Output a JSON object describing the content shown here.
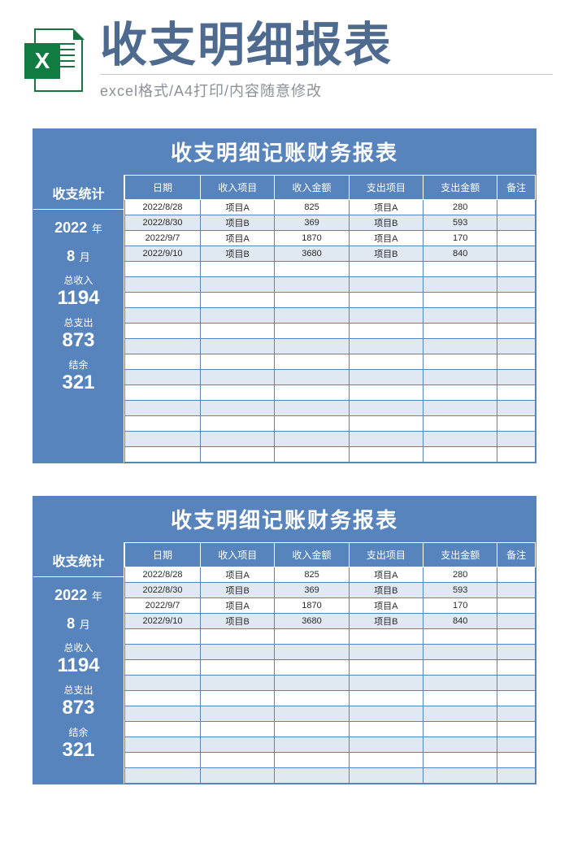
{
  "hero": {
    "title": "收支明细报表",
    "subtitle": "excel格式/A4打印/内容随意修改",
    "icon_letter": "X",
    "icon_bg": "#107c41",
    "icon_border": "#19733f"
  },
  "colors": {
    "brand_blue": "#5784bd",
    "alt_row": "#e0e8f2",
    "title_text": "#4e6a8f",
    "sub_text": "#8b9199"
  },
  "reports": [
    {
      "title": "收支明细记账财务报表",
      "sidebar": {
        "header": "收支统计",
        "year_value": "2022",
        "year_unit": "年",
        "month_value": "8",
        "month_unit": "月",
        "income_label": "总收入",
        "income_value": "1194",
        "expense_label": "总支出",
        "expense_value": "873",
        "balance_label": "结余",
        "balance_value": "321"
      },
      "columns": [
        "日期",
        "收入项目",
        "收入金额",
        "支出项目",
        "支出金额",
        "备注"
      ],
      "rows": [
        [
          "2022/8/28",
          "项目A",
          "825",
          "项目A",
          "280",
          ""
        ],
        [
          "2022/8/30",
          "项目B",
          "369",
          "项目B",
          "593",
          ""
        ],
        [
          "2022/9/7",
          "项目A",
          "1870",
          "项目A",
          "170",
          ""
        ],
        [
          "2022/9/10",
          "项目B",
          "3680",
          "项目B",
          "840",
          ""
        ]
      ],
      "empty_rows": 13
    },
    {
      "title": "收支明细记账财务报表",
      "sidebar": {
        "header": "收支统计",
        "year_value": "2022",
        "year_unit": "年",
        "month_value": "8",
        "month_unit": "月",
        "income_label": "总收入",
        "income_value": "1194",
        "expense_label": "总支出",
        "expense_value": "873",
        "balance_label": "结余",
        "balance_value": "321"
      },
      "columns": [
        "日期",
        "收入项目",
        "收入金额",
        "支出项目",
        "支出金额",
        "备注"
      ],
      "rows": [
        [
          "2022/8/28",
          "项目A",
          "825",
          "项目A",
          "280",
          ""
        ],
        [
          "2022/8/30",
          "项目B",
          "369",
          "项目B",
          "593",
          ""
        ],
        [
          "2022/9/7",
          "项目A",
          "1870",
          "项目A",
          "170",
          ""
        ],
        [
          "2022/9/10",
          "项目B",
          "3680",
          "项目B",
          "840",
          ""
        ]
      ],
      "empty_rows": 10
    }
  ]
}
